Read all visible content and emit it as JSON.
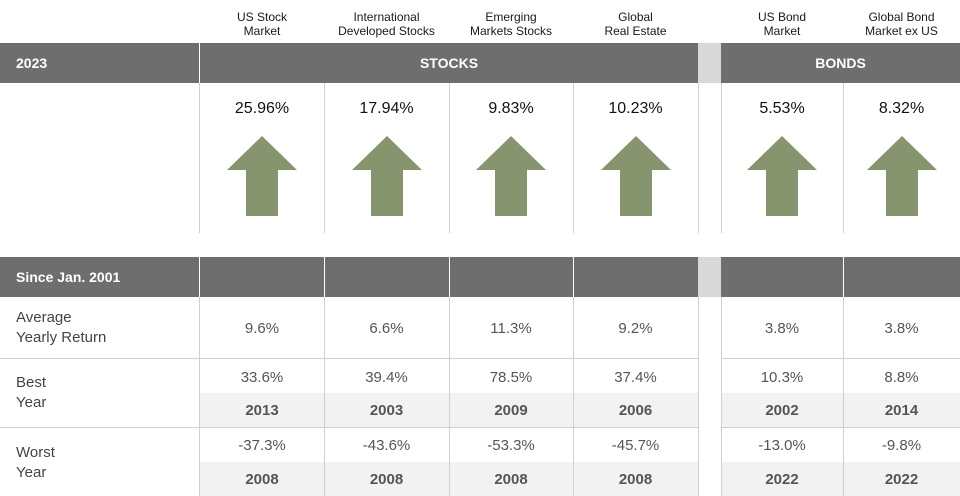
{
  "columns": [
    {
      "header": "US Stock\nMarket",
      "return_2023": "25.96%",
      "avg": "9.6%",
      "best": "33.6%",
      "best_year": "2013",
      "worst": "-37.3%",
      "worst_year": "2008"
    },
    {
      "header": "International\nDeveloped Stocks",
      "return_2023": "17.94%",
      "avg": "6.6%",
      "best": "39.4%",
      "best_year": "2003",
      "worst": "-43.6%",
      "worst_year": "2008"
    },
    {
      "header": "Emerging\nMarkets Stocks",
      "return_2023": "9.83%",
      "avg": "11.3%",
      "best": "78.5%",
      "best_year": "2009",
      "worst": "-53.3%",
      "worst_year": "2008"
    },
    {
      "header": "Global\nReal Estate",
      "return_2023": "10.23%",
      "avg": "9.2%",
      "best": "37.4%",
      "best_year": "2006",
      "worst": "-45.7%",
      "worst_year": "2008"
    },
    {
      "header": "US Bond\nMarket",
      "return_2023": "5.53%",
      "avg": "3.8%",
      "best": "10.3%",
      "best_year": "2002",
      "worst": "-13.0%",
      "worst_year": "2022"
    },
    {
      "header": "Global Bond\nMarket ex US",
      "return_2023": "8.32%",
      "avg": "3.8%",
      "best": "8.8%",
      "best_year": "2014",
      "worst": "-9.8%",
      "worst_year": "2022"
    }
  ],
  "bar1": {
    "label": "2023",
    "stocks": "STOCKS",
    "bonds": "BONDS"
  },
  "bar2": {
    "label": "Since Jan. 2001"
  },
  "rows": {
    "avg_label": "Average\nYearly Return",
    "best_label": "Best\nYear",
    "worst_label": "Worst\nYear"
  },
  "colors": {
    "bar": "#6e6e6e",
    "arrow": "#86956e"
  },
  "icons": {
    "direction": "up-arrow-icon"
  }
}
